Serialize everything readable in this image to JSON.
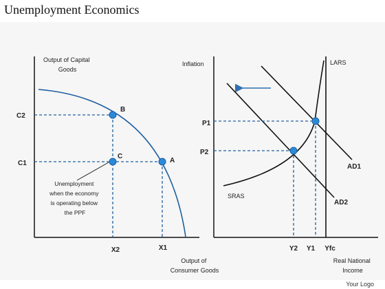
{
  "header": {
    "title": "Unemployment Economics"
  },
  "footer": {
    "logo_text": "Your Logo"
  },
  "ppf_panel": {
    "y_axis_title": [
      "Output of Capital",
      "Goods"
    ],
    "x_axis_title": [
      "Output of",
      "Consumer Goods"
    ],
    "y_ticks": {
      "c2": "C2",
      "c1": "C1"
    },
    "x_ticks": {
      "x2": "X2",
      "x1": "X1"
    },
    "points": {
      "a": "A",
      "b": "B",
      "c": "C"
    },
    "annotation": [
      "Unemployment",
      "when the economy",
      "is operating below",
      "the PPF"
    ]
  },
  "adas_panel": {
    "y_axis_title": "Inflation",
    "x_axis_title": [
      "Real National",
      "Income"
    ],
    "y_ticks": {
      "p1": "P1",
      "p2": "P2"
    },
    "x_ticks": {
      "y2": "Y2",
      "y1": "Y1",
      "yfc": "Yfc"
    },
    "curves": {
      "lars": "LARS",
      "sras": "SRAS",
      "ad1": "AD1",
      "ad2": "AD2"
    }
  },
  "colors": {
    "curve": "#1f5fa0",
    "point": "#2a8ad8",
    "axis": "#111111",
    "panel": "#f6f6f6",
    "arrow": "#2f6fb0"
  }
}
